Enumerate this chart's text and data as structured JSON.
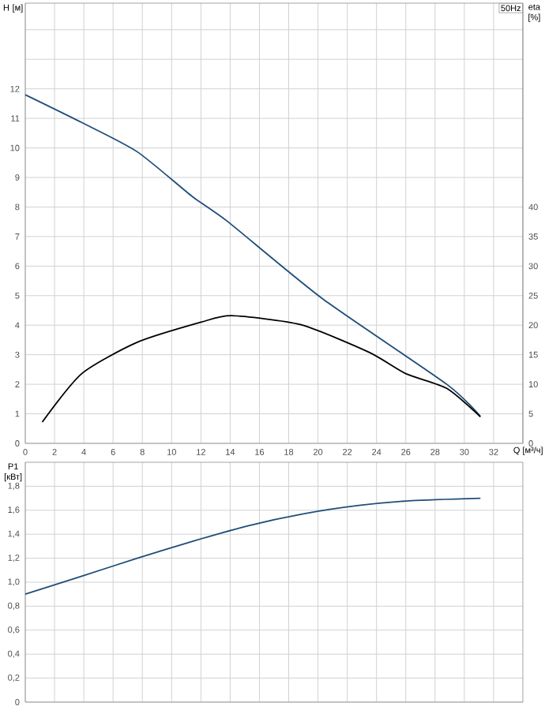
{
  "chart_data": [
    {
      "type": "line",
      "title": "50Hz",
      "xlabel": "Q [м³/ч]",
      "ylabel": "H [м]",
      "y2label": "eta [%]",
      "xlim": [
        0,
        34
      ],
      "xticks": [
        0,
        2,
        4,
        6,
        8,
        10,
        12,
        14,
        16,
        18,
        20,
        22,
        24,
        26,
        28,
        30,
        32
      ],
      "ylim": [
        0,
        14.9
      ],
      "yticks": [
        0,
        1,
        2,
        3,
        4,
        5,
        6,
        7,
        8,
        9,
        10,
        11,
        12,
        {
          "value": 13,
          "label": null
        },
        {
          "value": 14,
          "label": null
        }
      ],
      "y2lim": [
        0,
        74.5
      ],
      "y2ticks": [
        0,
        5,
        10,
        15,
        20,
        25,
        30,
        35,
        40
      ],
      "grid": true,
      "marker": "none",
      "line_style": "solid",
      "series": [
        {
          "color": "#1f4e79",
          "x": [
            0,
            3.86,
            7.65,
            11.4,
            13.8,
            20.3,
            28.8,
            31.1
          ],
          "values": [
            11.8,
            10.86,
            9.87,
            8.36,
            7.52,
            4.9,
            2.0,
            0.91
          ]
        },
        {
          "color": "#000000",
          "axis": "y2",
          "x": [
            1.16,
            3.86,
            7.65,
            12,
            14.1,
            18.8,
            23.5,
            26.0,
            28.8,
            31.1
          ],
          "values": [
            3.6,
            11.8,
            17.1,
            20.5,
            21.6,
            20.1,
            15.4,
            11.8,
            9.3,
            4.5
          ]
        }
      ]
    },
    {
      "type": "line",
      "ylabel": "P1 [кВт]",
      "xlim": [
        0,
        34
      ],
      "xticks": [
        0,
        2,
        4,
        6,
        8,
        10,
        12,
        14,
        16,
        18,
        20,
        22,
        24,
        26,
        28,
        30,
        32
      ],
      "ylim": [
        0,
        2.0
      ],
      "yticks": [
        0,
        {
          "value": 0.2,
          "label": "0,2"
        },
        {
          "value": 0.4,
          "label": "0,4"
        },
        {
          "value": 0.6,
          "label": "0,6"
        },
        {
          "value": 0.8,
          "label": "0,8"
        },
        {
          "value": 1.0,
          "label": "1,0"
        },
        {
          "value": 1.2,
          "label": "1,2"
        },
        {
          "value": 1.4,
          "label": "1,4"
        },
        {
          "value": 1.6,
          "label": "1,6"
        },
        {
          "value": 1.8,
          "label": "1,8"
        }
      ],
      "tick_labels": "y",
      "grid": true,
      "marker": "none",
      "line_style": "solid",
      "series": [
        {
          "color": "#1f4e79",
          "x": [
            0,
            3.86,
            7.65,
            11.4,
            15.2,
            19.0,
            22.8,
            26.4,
            31.1
          ],
          "values": [
            0.9,
            1.05,
            1.2,
            1.34,
            1.47,
            1.57,
            1.64,
            1.68,
            1.7
          ]
        }
      ]
    }
  ]
}
